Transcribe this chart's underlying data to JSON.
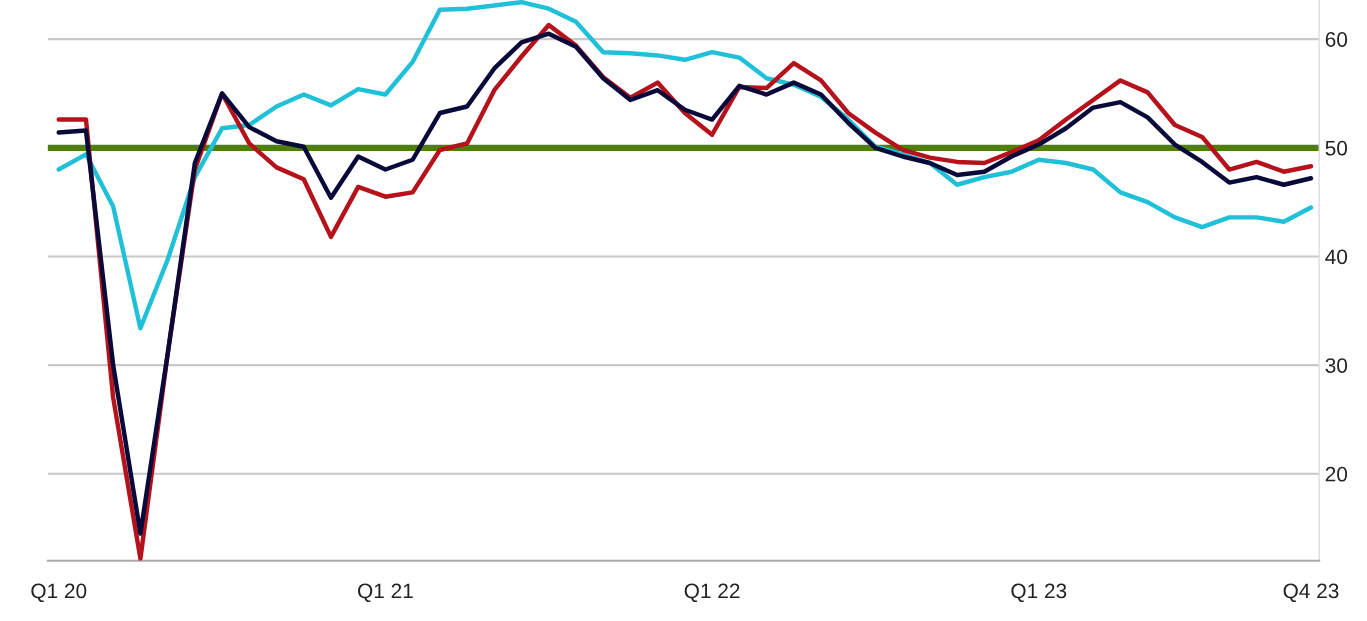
{
  "chart_data": {
    "type": "line",
    "categories": [
      "Q1 20",
      null,
      null,
      null,
      null,
      null,
      null,
      null,
      null,
      null,
      null,
      null,
      "Q1 21",
      null,
      null,
      null,
      null,
      null,
      null,
      null,
      null,
      null,
      null,
      null,
      "Q1 22",
      null,
      null,
      null,
      null,
      null,
      null,
      null,
      null,
      null,
      null,
      null,
      "Q1 23",
      null,
      null,
      null,
      null,
      null,
      null,
      null,
      null,
      null,
      "Q4 23"
    ],
    "series": [
      {
        "color": "#1fc0d8",
        "values": [
          48.0,
          49.4,
          44.6,
          33.4,
          39.7,
          47.3,
          51.8,
          52.1,
          53.8,
          54.9,
          53.9,
          55.4,
          54.9,
          57.9,
          62.7,
          62.8,
          63.1,
          63.4,
          62.8,
          61.6,
          58.8,
          58.7,
          58.5,
          58.1,
          58.8,
          58.3,
          56.4,
          55.8,
          54.7,
          52.6,
          50.1,
          49.4,
          48.6,
          46.6,
          47.3,
          47.8,
          48.9,
          48.6,
          48.0,
          45.9,
          45.0,
          43.6,
          42.7,
          43.6,
          43.6,
          43.2,
          44.5
        ]
      },
      {
        "color": "#b5121b",
        "values": [
          52.6,
          52.6,
          27.0,
          12.2,
          31.0,
          48.0,
          55.0,
          50.4,
          48.2,
          47.1,
          41.8,
          46.4,
          45.5,
          45.9,
          49.8,
          50.4,
          55.3,
          58.4,
          61.3,
          59.4,
          56.5,
          54.6,
          56.0,
          53.2,
          51.2,
          55.6,
          55.5,
          57.8,
          56.2,
          53.2,
          51.4,
          49.8,
          49.1,
          48.7,
          48.6,
          49.6,
          50.7,
          52.6,
          54.4,
          56.2,
          55.1,
          52.1,
          51.0,
          48.0,
          48.7,
          47.8,
          48.3
        ]
      },
      {
        "color": "#0a0a3a",
        "values": [
          51.4,
          51.6,
          30.0,
          14.5,
          31.0,
          48.6,
          55.0,
          51.9,
          50.6,
          50.1,
          45.4,
          49.2,
          48.0,
          48.9,
          53.2,
          53.8,
          57.3,
          59.7,
          60.5,
          59.3,
          56.4,
          54.4,
          55.3,
          53.5,
          52.6,
          55.7,
          54.9,
          56.0,
          54.9,
          52.3,
          50.0,
          49.2,
          48.6,
          47.5,
          47.8,
          49.2,
          50.3,
          51.8,
          53.7,
          54.2,
          52.8,
          50.3,
          48.7,
          46.8,
          47.3,
          46.6,
          47.2
        ]
      }
    ],
    "ylim": [
      12,
      63.6
    ],
    "yticks": [
      20,
      30,
      40,
      50,
      60
    ],
    "ref_lines": [
      {
        "axis": "y",
        "value": 50,
        "color": "#4d7f0a"
      }
    ],
    "grid": "y",
    "legend": false,
    "marker": "none",
    "line_style": "solid"
  }
}
